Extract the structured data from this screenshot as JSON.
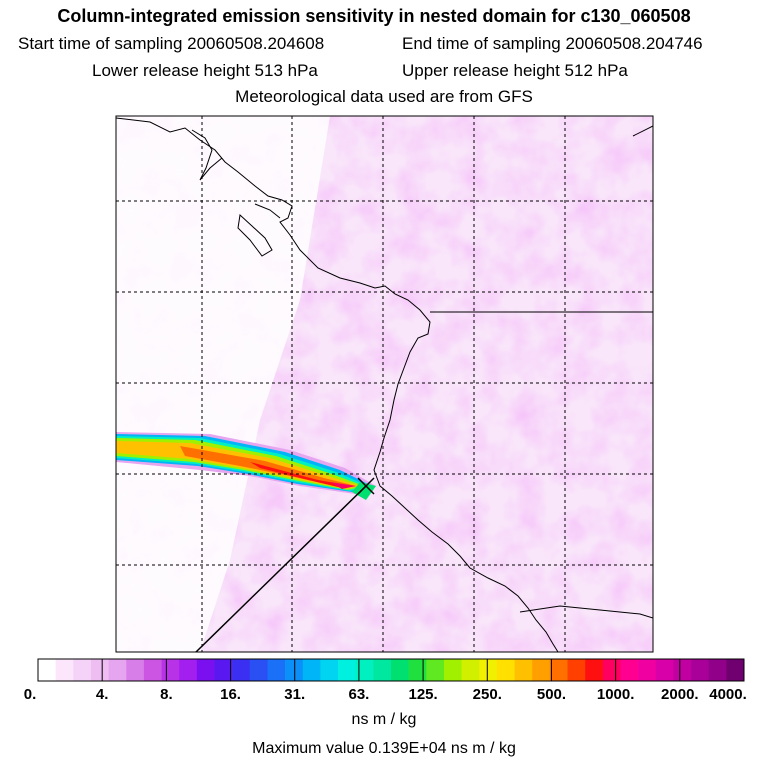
{
  "header": {
    "title": "Column-integrated emission sensitivity in nested domain for c130_060508",
    "start": "Start time of sampling 20060508.204608",
    "end": "End time of sampling 20060508.204746",
    "lower": "Lower release height  513 hPa",
    "upper": "Upper release height  512 hPa",
    "met": "Meteorological data used are from GFS"
  },
  "colorbar": {
    "labels": [
      "0.",
      "4.",
      "8.",
      "16.",
      "31.",
      "63.",
      "125.",
      "250.",
      "500.",
      "1000.",
      "2000.",
      "4000."
    ],
    "colors": [
      "#ffffff",
      "#fbe6fb",
      "#f5d2f7",
      "#eebef3",
      "#e6a5ef",
      "#d87ee8",
      "#cc55e4",
      "#b833e8",
      "#a21ff0",
      "#7a10f0",
      "#5a18f0",
      "#3b30f2",
      "#2a50f4",
      "#1a70f6",
      "#0a90f8",
      "#00b4f8",
      "#00d4f0",
      "#00f0e0",
      "#00f0c0",
      "#00e8a0",
      "#00e070",
      "#20e040",
      "#60e820",
      "#a0f000",
      "#d0f000",
      "#f0f000",
      "#ffe000",
      "#ffc000",
      "#ffa000",
      "#ff7000",
      "#ff4000",
      "#ff1010",
      "#ff0060",
      "#ff0090",
      "#f000a0",
      "#d800a8",
      "#c000a0",
      "#a80098",
      "#900088",
      "#700070"
    ],
    "units": "ns m / kg",
    "max_value": "Maximum value  0.139E+04 ns m / kg"
  },
  "chart_data": {
    "type": "heatmap",
    "title": "Column-integrated emission sensitivity in nested domain for c130_060508",
    "colorbar_levels": [
      0,
      4,
      8,
      16,
      31,
      63,
      125,
      250,
      500,
      1000,
      2000,
      4000
    ],
    "colorbar_units": "ns m / kg",
    "max_value": 1390,
    "grid": true,
    "plume": {
      "description_levels": "highest values near release point, decreasing westward",
      "peak": 1390
    }
  }
}
